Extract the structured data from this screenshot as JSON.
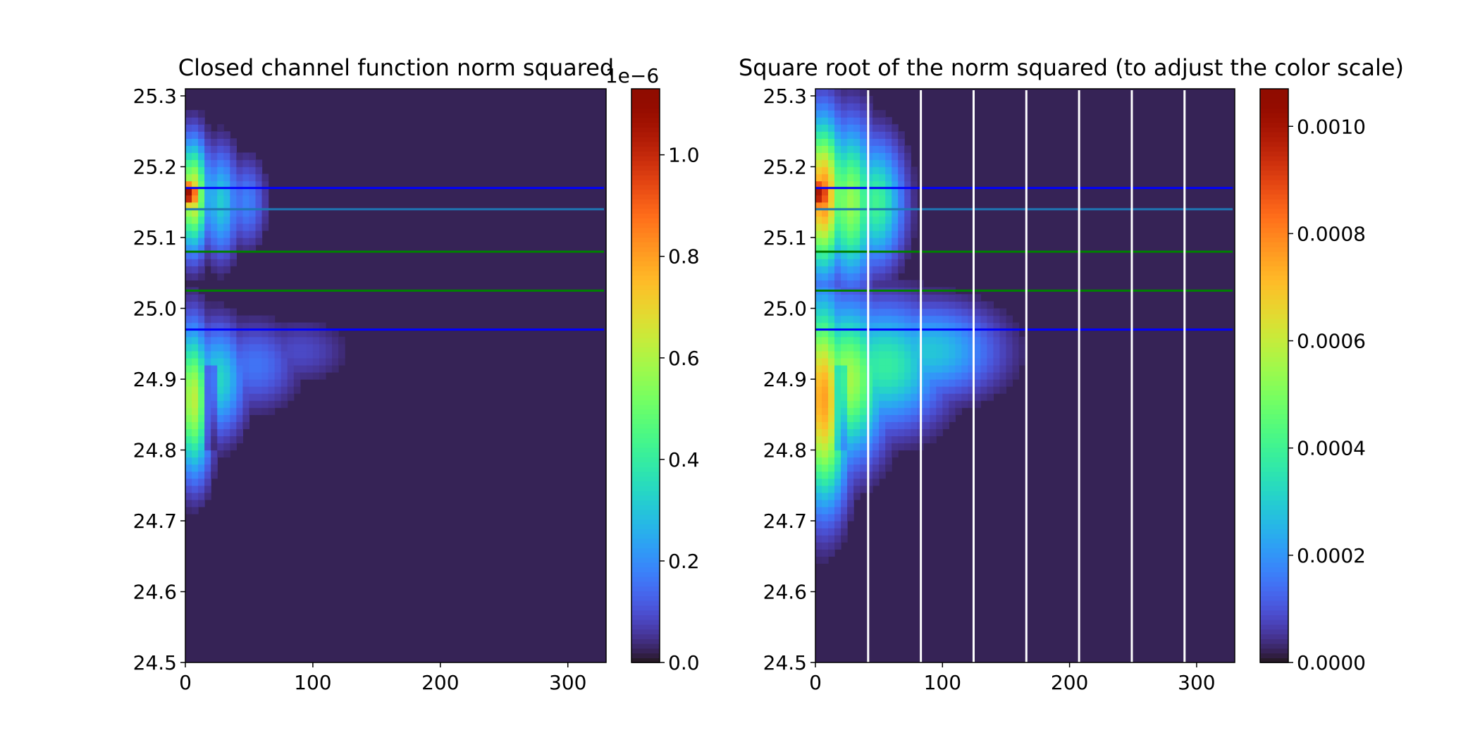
{
  "chart_data": [
    {
      "type": "heatmap",
      "title": "Closed channel function norm squared",
      "xlabel": "",
      "ylabel": "",
      "xlim": [
        0,
        330
      ],
      "ylim": [
        24.5,
        25.31
      ],
      "x_ticks": [
        0,
        100,
        200,
        300
      ],
      "x_tick_labels": [
        "0",
        "100",
        "200",
        "300"
      ],
      "y_ticks": [
        24.5,
        24.6,
        24.7,
        24.8,
        24.9,
        25.0,
        25.1,
        25.2,
        25.3
      ],
      "y_tick_labels": [
        "24.5",
        "24.6",
        "24.7",
        "24.8",
        "24.9",
        "25.0",
        "25.1",
        "25.2",
        "25.3"
      ],
      "colormap": "turbo",
      "colorbar": {
        "min": 0,
        "max": 1.13,
        "ticks": [
          0.0,
          0.2,
          0.4,
          0.6,
          0.8,
          1.0
        ],
        "tick_labels": [
          "0.0",
          "0.2",
          "0.4",
          "0.6",
          "0.8",
          "1.0"
        ],
        "offset_label": "1e−6"
      },
      "intensity_peaks": [
        {
          "x": 4,
          "y": 25.16,
          "value": 1.13
        },
        {
          "x": 5,
          "y": 24.87,
          "value": 0.62
        }
      ],
      "hlines": [
        {
          "y": 25.17,
          "color": "#0000ff"
        },
        {
          "y": 25.14,
          "color": "#1f77b4"
        },
        {
          "y": 25.08,
          "color": "#008000"
        },
        {
          "y": 25.025,
          "color": "#008000"
        },
        {
          "y": 24.97,
          "color": "#0000ff"
        }
      ],
      "vlines": []
    },
    {
      "type": "heatmap",
      "title": "Square root of the norm squared (to adjust the color scale)",
      "xlabel": "",
      "ylabel": "",
      "xlim": [
        0,
        330
      ],
      "ylim": [
        24.5,
        25.31
      ],
      "x_ticks": [
        0,
        100,
        200,
        300
      ],
      "x_tick_labels": [
        "0",
        "100",
        "200",
        "300"
      ],
      "y_ticks": [
        24.5,
        24.6,
        24.7,
        24.8,
        24.9,
        25.0,
        25.1,
        25.2,
        25.3
      ],
      "y_tick_labels": [
        "24.5",
        "24.6",
        "24.7",
        "24.8",
        "24.9",
        "25.0",
        "25.1",
        "25.2",
        "25.3"
      ],
      "colormap": "turbo",
      "colorbar": {
        "min": 0,
        "max": 0.00107,
        "ticks": [
          0.0,
          0.0002,
          0.0004,
          0.0006,
          0.0008,
          0.001
        ],
        "tick_labels": [
          "0.0000",
          "0.0002",
          "0.0004",
          "0.0006",
          "0.0008",
          "0.0010"
        ],
        "offset_label": ""
      },
      "intensity_peaks": [
        {
          "x": 4,
          "y": 25.16,
          "value": 0.00107
        },
        {
          "x": 5,
          "y": 24.87,
          "value": 0.00079
        }
      ],
      "hlines": [
        {
          "y": 25.17,
          "color": "#0000ff"
        },
        {
          "y": 25.14,
          "color": "#1f77b4"
        },
        {
          "y": 25.08,
          "color": "#008000"
        },
        {
          "y": 25.025,
          "color": "#008000"
        },
        {
          "y": 24.97,
          "color": "#0000ff"
        }
      ],
      "vlines": [
        {
          "x": 41.5,
          "color": "#ffffff"
        },
        {
          "x": 83,
          "color": "#ffffff"
        },
        {
          "x": 124.5,
          "color": "#ffffff"
        },
        {
          "x": 166,
          "color": "#ffffff"
        },
        {
          "x": 207.5,
          "color": "#ffffff"
        },
        {
          "x": 249,
          "color": "#ffffff"
        },
        {
          "x": 290.5,
          "color": "#ffffff"
        }
      ]
    }
  ]
}
